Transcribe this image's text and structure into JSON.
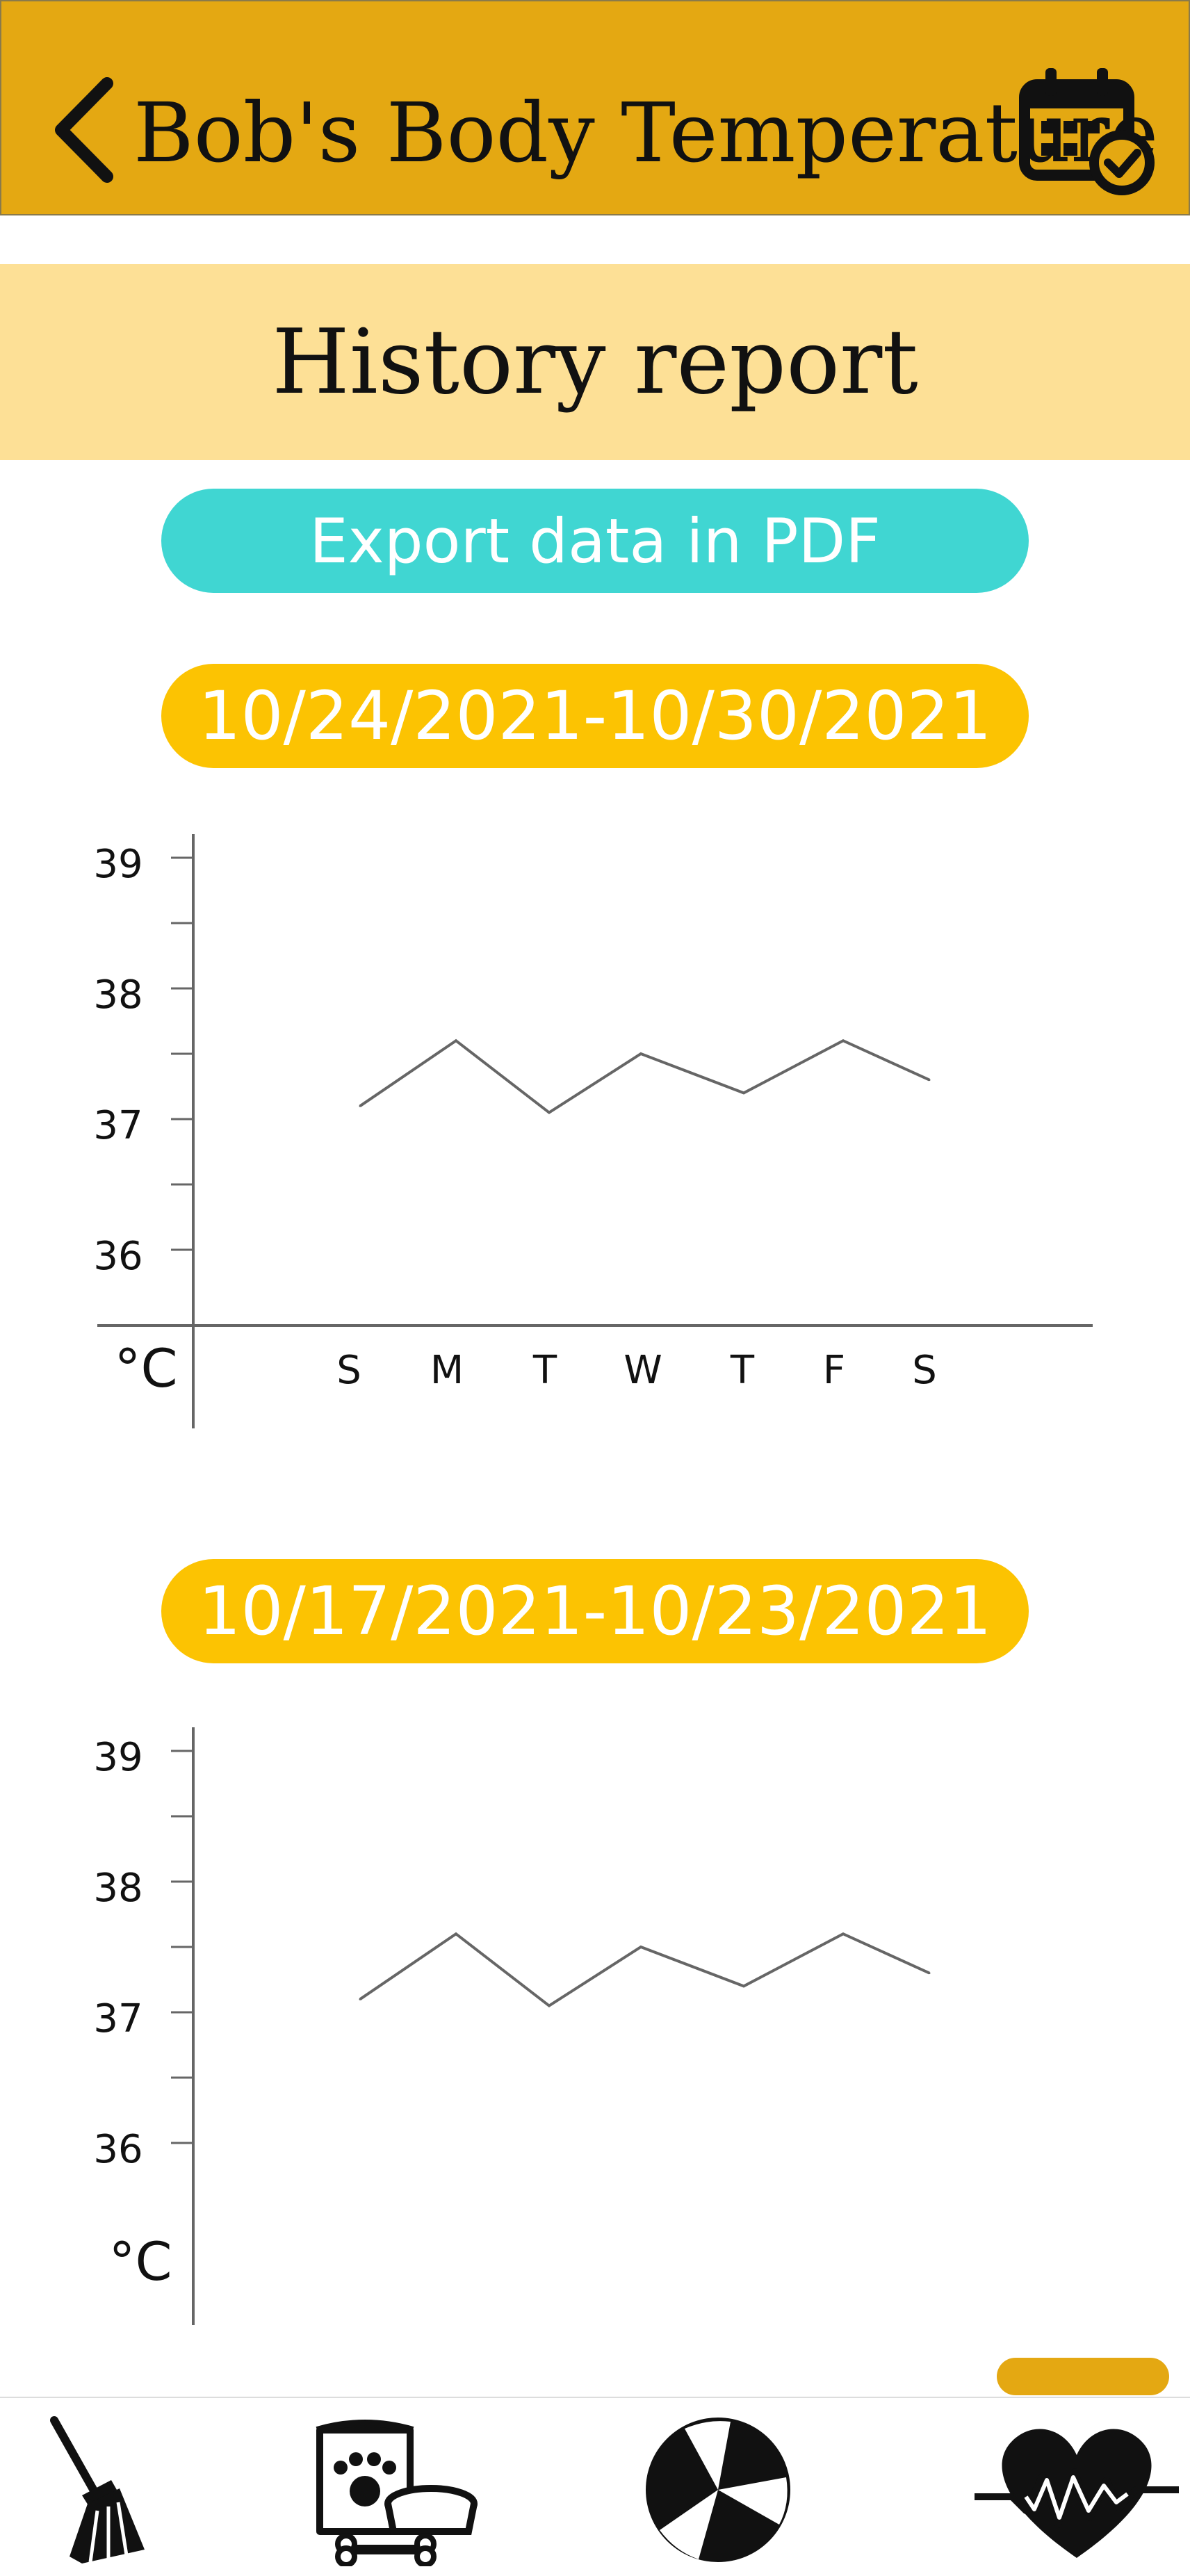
{
  "header": {
    "title": "Bob's Body Temperature",
    "back_icon": "chevron-left-icon",
    "calendar_icon": "calendar-check-icon",
    "color": "#e4a812"
  },
  "section": {
    "title": "History report",
    "color": "#fde096"
  },
  "export_button": {
    "label": "Export data in PDF",
    "color": "#40d6d2"
  },
  "charts": [
    {
      "range_label": "10/24/2021-10/30/2021",
      "unit_label": "°C",
      "y_ticks": [
        "39",
        "38",
        "37",
        "36"
      ],
      "day_labels": [
        "S",
        "M",
        "T",
        "W",
        "T",
        "F",
        "S"
      ]
    },
    {
      "range_label": "10/17/2021-10/23/2021",
      "unit_label": "°C",
      "y_ticks": [
        "39",
        "38",
        "37",
        "36"
      ],
      "day_labels": []
    }
  ],
  "chart_data": [
    {
      "type": "line",
      "title": "10/24/2021-10/30/2021",
      "ylabel": "°C",
      "categories": [
        "S",
        "M",
        "T",
        "W",
        "T",
        "F",
        "S"
      ],
      "values": [
        37.1,
        37.6,
        37.05,
        37.5,
        37.2,
        37.6,
        37.3
      ],
      "ylim": [
        35.5,
        39.3
      ],
      "grid": false
    },
    {
      "type": "line",
      "title": "10/17/2021-10/23/2021",
      "ylabel": "°C",
      "categories": [
        "",
        "",
        "",
        "",
        "",
        "",
        ""
      ],
      "values": [
        37.1,
        37.6,
        37.05,
        37.5,
        37.2,
        37.6,
        37.3
      ],
      "ylim": [
        35.5,
        39.3
      ],
      "grid": false
    }
  ],
  "bottom_nav": {
    "items": [
      {
        "icon": "broom-icon"
      },
      {
        "icon": "pet-food-icon"
      },
      {
        "icon": "beach-ball-icon"
      },
      {
        "icon": "heartbeat-icon"
      }
    ],
    "active_color": "#e4a812"
  }
}
